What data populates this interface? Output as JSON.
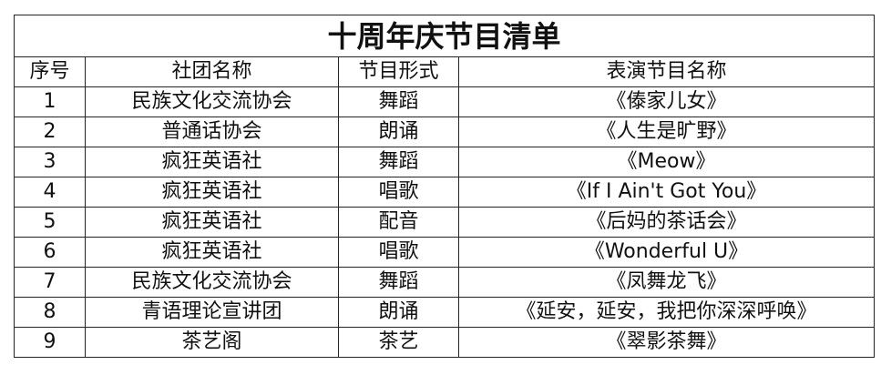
{
  "title": "十周年庆节目清单",
  "headers": [
    "序号",
    "社团名称",
    "节目形式",
    "表演节目名称"
  ],
  "rows": [
    [
      "1",
      "民族文化交流协会",
      "舞蹈",
      "《傣家儿女》"
    ],
    [
      "2",
      "普通话协会",
      "朗诵",
      "《人生是旷野》"
    ],
    [
      "3",
      "疯狂英语社",
      "舞蹈",
      "《Meow》"
    ],
    [
      "4",
      "疯狂英语社",
      "唱歌",
      "《If I Ain't Got You》"
    ],
    [
      "5",
      "疯狂英语社",
      "配音",
      "《后妈的茶话会》"
    ],
    [
      "6",
      "疯狂英语社",
      "唱歌",
      "《Wonderful  U》"
    ],
    [
      "7",
      "民族文化交流协会",
      "舞蹈",
      "《凤舞龙飞》"
    ],
    [
      "8",
      "青语理论宣讲团",
      "朗诵",
      "《延安，延安，我把你深深呼唤》"
    ],
    [
      "9",
      "茶艺阁",
      "茶艺",
      "《翠影茶舞》"
    ]
  ]
}
